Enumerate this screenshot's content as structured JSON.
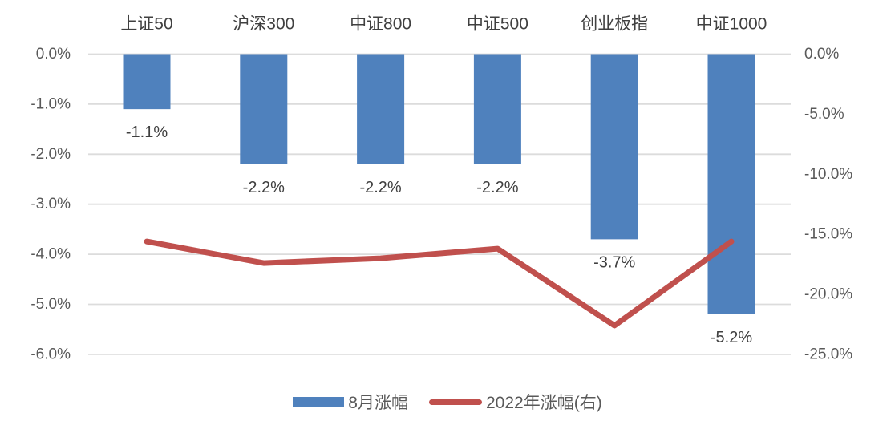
{
  "chart_data": {
    "type": "combo",
    "title": "",
    "categories": [
      "上证50",
      "沪深300",
      "中证800",
      "中证500",
      "创业板指",
      "中证1000"
    ],
    "series": [
      {
        "name": "8月涨幅",
        "type": "bar",
        "axis": "left",
        "color": "#4F81BD",
        "values": [
          -1.1,
          -2.2,
          -2.2,
          -2.2,
          -3.7,
          -5.2
        ],
        "data_labels": [
          "-1.1%",
          "-2.2%",
          "-2.2%",
          "-2.2%",
          "-3.7%",
          "-5.2%"
        ]
      },
      {
        "name": "2022年涨幅(右)",
        "type": "line",
        "axis": "right",
        "color": "#C0504D",
        "values": [
          -15.6,
          -17.4,
          -17.0,
          -16.2,
          -22.6,
          -15.6
        ]
      }
    ],
    "left_axis": {
      "ticks": [
        "0.0%",
        "-1.0%",
        "-2.0%",
        "-3.0%",
        "-4.0%",
        "-5.0%",
        "-6.0%"
      ],
      "max": 0,
      "min": -6
    },
    "right_axis": {
      "ticks": [
        "0.0%",
        "-5.0%",
        "-10.0%",
        "-15.0%",
        "-20.0%",
        "-25.0%"
      ],
      "max": 0,
      "min": -25
    },
    "grid": true,
    "legend_position": "bottom",
    "colors": {
      "grid": "#DCDCDC",
      "axis_text": "#595959",
      "category_text": "#404040",
      "data_label_text": "#404040",
      "background": "#FFFFFF"
    }
  }
}
